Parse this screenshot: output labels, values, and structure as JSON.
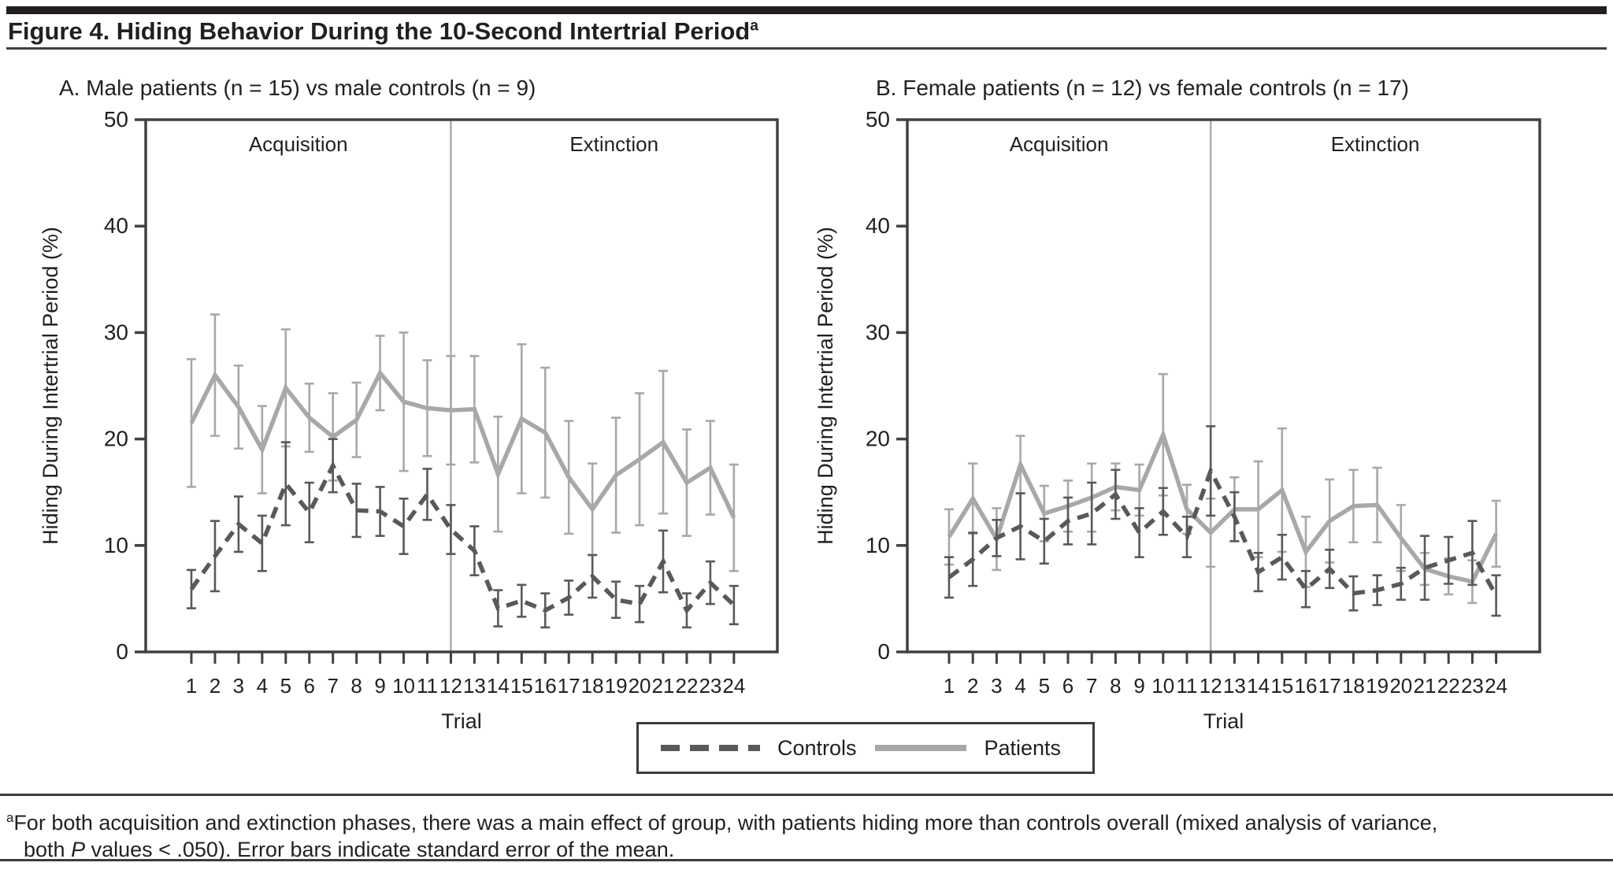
{
  "title": {
    "text": "Figure 4. Hiding Behavior During the 10-Second Intertrial Period",
    "superscript": "a"
  },
  "legend": {
    "items": [
      {
        "label": "Controls",
        "style": "dashed",
        "color": "#58595b"
      },
      {
        "label": "Patients",
        "style": "solid",
        "color": "#a7a8aa"
      }
    ]
  },
  "footnote": {
    "marker": "a",
    "line1": "For both acquisition and extinction phases, there was a main effect of group, with patients hiding more than controls overall (mixed analysis of variance,",
    "line2_pre": "both ",
    "line2_italic": "P",
    "line2_post": " values < .050). Error bars indicate standard error of the mean."
  },
  "colors": {
    "controls": "#58595b",
    "patients": "#a7a8aa",
    "axis": "#414042",
    "divider": "#aeaeae",
    "text": "#231f20"
  },
  "chart_data": [
    {
      "id": "panel-a",
      "type": "line",
      "title": "A. Male patients (n = 15) vs male controls (n = 9)",
      "xlabel": "Trial",
      "ylabel": "Hiding During Intertrial Period (%)",
      "ylim": [
        0,
        50
      ],
      "yticks": [
        0,
        10,
        20,
        30,
        40,
        50
      ],
      "x": [
        1,
        2,
        3,
        4,
        5,
        6,
        7,
        8,
        9,
        10,
        11,
        12,
        13,
        14,
        15,
        16,
        17,
        18,
        19,
        20,
        21,
        22,
        23,
        24
      ],
      "phase_labels": [
        "Acquisition",
        "Extinction"
      ],
      "phase_divider_x": 12,
      "grid": false,
      "legend_position": "bottom",
      "error_bars": "standard error of the mean",
      "series": [
        {
          "name": "Controls",
          "style": "dashed",
          "color": "#58595b",
          "values": [
            5.9,
            9.0,
            12.0,
            10.2,
            15.8,
            13.1,
            17.5,
            13.3,
            13.2,
            11.8,
            14.8,
            11.5,
            9.5,
            4.1,
            4.8,
            3.9,
            5.1,
            7.1,
            4.9,
            4.5,
            8.5,
            3.9,
            6.5,
            4.4
          ],
          "se": [
            1.8,
            3.3,
            2.6,
            2.6,
            3.9,
            2.8,
            2.5,
            2.5,
            2.3,
            2.6,
            2.4,
            2.3,
            2.3,
            1.7,
            1.5,
            1.6,
            1.6,
            2.0,
            1.7,
            1.7,
            2.9,
            1.6,
            2.0,
            1.8
          ]
        },
        {
          "name": "Patients",
          "style": "solid",
          "color": "#a7a8aa",
          "values": [
            21.5,
            26.0,
            23.0,
            19.0,
            24.8,
            22.0,
            20.2,
            21.8,
            26.2,
            23.5,
            22.9,
            22.7,
            22.8,
            16.7,
            21.9,
            20.6,
            16.4,
            13.4,
            16.6,
            18.1,
            19.7,
            15.9,
            17.3,
            12.6
          ],
          "se": [
            6.0,
            5.7,
            3.9,
            4.1,
            5.5,
            3.2,
            4.1,
            3.5,
            3.5,
            6.5,
            4.5,
            5.1,
            5.0,
            5.4,
            7.0,
            6.1,
            5.3,
            4.3,
            5.4,
            6.2,
            6.7,
            5.0,
            4.4,
            5.0
          ]
        }
      ]
    },
    {
      "id": "panel-b",
      "type": "line",
      "title": "B. Female patients (n = 12) vs female controls (n = 17)",
      "xlabel": "Trial",
      "ylabel": "Hiding During Intertrial Period (%)",
      "ylim": [
        0,
        50
      ],
      "yticks": [
        0,
        10,
        20,
        30,
        40,
        50
      ],
      "x": [
        1,
        2,
        3,
        4,
        5,
        6,
        7,
        8,
        9,
        10,
        11,
        12,
        13,
        14,
        15,
        16,
        17,
        18,
        19,
        20,
        21,
        22,
        23,
        24
      ],
      "phase_labels": [
        "Acquisition",
        "Extinction"
      ],
      "phase_divider_x": 12,
      "grid": false,
      "legend_position": "bottom",
      "error_bars": "standard error of the mean",
      "series": [
        {
          "name": "Controls",
          "style": "dashed",
          "color": "#58595b",
          "values": [
            7.0,
            8.7,
            10.7,
            11.8,
            10.4,
            12.3,
            13.0,
            14.8,
            11.2,
            13.2,
            10.8,
            17.0,
            12.7,
            7.5,
            8.9,
            5.9,
            7.8,
            5.5,
            5.8,
            6.4,
            7.9,
            8.6,
            9.3,
            5.3
          ],
          "se": [
            1.9,
            2.5,
            1.7,
            3.1,
            2.1,
            2.2,
            2.9,
            2.3,
            2.3,
            2.2,
            1.9,
            4.2,
            2.3,
            1.8,
            2.1,
            1.7,
            1.8,
            1.6,
            1.4,
            1.5,
            3.0,
            2.2,
            3.0,
            1.9
          ]
        },
        {
          "name": "Patients",
          "style": "solid",
          "color": "#a7a8aa",
          "values": [
            10.8,
            14.4,
            10.6,
            17.6,
            13.0,
            13.7,
            14.5,
            15.5,
            15.2,
            20.4,
            13.4,
            11.2,
            13.4,
            13.4,
            15.2,
            9.4,
            12.3,
            13.7,
            13.8,
            10.7,
            7.8,
            7.1,
            6.6,
            11.1
          ],
          "se": [
            2.6,
            3.3,
            2.9,
            2.7,
            2.6,
            2.4,
            3.2,
            2.2,
            2.4,
            5.7,
            2.3,
            3.2,
            3.0,
            4.5,
            5.8,
            3.3,
            3.9,
            3.4,
            3.5,
            3.1,
            1.5,
            1.7,
            2.0,
            3.1
          ]
        }
      ]
    }
  ]
}
